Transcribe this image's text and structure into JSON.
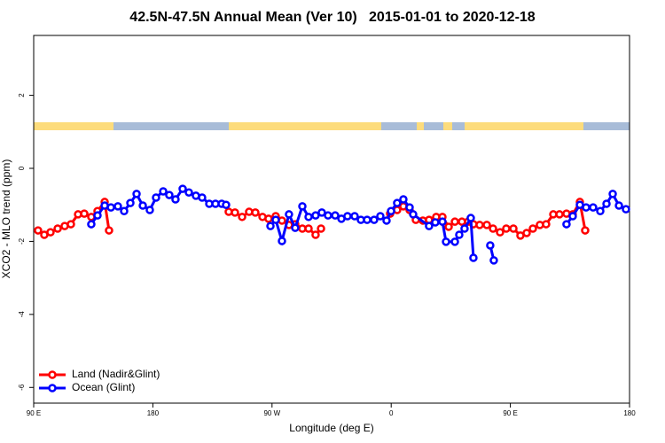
{
  "chart_data": {
    "type": "line",
    "title": "42.5N-47.5N Annual Mean (Ver 10)   2015-01-01 to 2020-12-18",
    "x_label": "Longitude (deg E)",
    "y_label": "XCO2 - MLO trend (ppm)",
    "xlim": [
      90,
      540
    ],
    "xticks": [
      {
        "value": 90,
        "label": "90 E"
      },
      180,
      {
        "value": 270,
        "label": "90 W"
      },
      {
        "value": 360,
        "label": "0"
      },
      {
        "value": 450,
        "label": "90 E"
      },
      {
        "value": 540,
        "label": "180"
      }
    ],
    "ylim": [
      -6.43,
      3.64
    ],
    "yticks": [
      -6,
      -4,
      -2,
      0,
      2
    ],
    "legend": "bottom-left",
    "series": [
      {
        "name": "Land (Nadir&Glint)",
        "color": "#ff0000",
        "x": [
          93.3,
          98.0,
          102.7,
          108.1,
          113.4,
          118.1,
          123.5,
          128.2,
          133.5,
          138.2,
          143.6,
          146.9,
          null,
          237.3,
          242.0,
          247.4,
          252.7,
          257.4,
          262.8,
          267.4,
          272.8,
          277.5,
          282.8,
          287.5,
          292.9,
          297.6,
          302.9,
          307.0,
          null,
          359.2,
          364.5,
          369.2,
          373.9,
          378.6,
          383.9,
          388.6,
          394.0,
          398.7,
          403.4,
          408.1,
          413.4,
          418.1,
          422.1,
          426.8,
          432.2,
          436.9,
          442.2,
          446.9,
          452.3,
          457.6,
          462.3,
          467.0,
          472.3,
          477.0,
          482.4,
          487.1,
          492.4,
          497.1,
          502.5,
          506.5
        ],
        "values": [
          -1.7,
          -1.82,
          -1.75,
          -1.65,
          -1.58,
          -1.53,
          -1.26,
          -1.24,
          -1.33,
          -1.17,
          -0.92,
          -1.7,
          null,
          -1.19,
          -1.21,
          -1.33,
          -1.19,
          -1.21,
          -1.33,
          -1.38,
          -1.31,
          -1.43,
          -1.55,
          -1.53,
          -1.65,
          -1.65,
          -1.82,
          -1.65,
          null,
          -1.24,
          -1.14,
          -1.04,
          -1.14,
          -1.41,
          -1.43,
          -1.41,
          -1.33,
          -1.33,
          -1.6,
          -1.46,
          -1.46,
          -1.46,
          -1.53,
          -1.55,
          -1.55,
          -1.65,
          -1.75,
          -1.65,
          -1.65,
          -1.84,
          -1.77,
          -1.65,
          -1.55,
          -1.53,
          -1.26,
          -1.26,
          -1.24,
          -1.26,
          -0.92,
          -1.7
        ]
      },
      {
        "name": "Ocean (Glint)",
        "color": "#0000ff",
        "x": [
          133.5,
          138.2,
          143.6,
          148.3,
          153.6,
          158.3,
          163.0,
          167.7,
          172.4,
          177.7,
          182.4,
          187.8,
          192.4,
          197.1,
          202.5,
          207.2,
          212.5,
          217.2,
          222.6,
          227.3,
          232.0,
          235.3,
          null,
          268.8,
          272.8,
          277.5,
          282.8,
          287.5,
          292.9,
          297.6,
          302.9,
          307.6,
          312.3,
          317.7,
          322.4,
          327.0,
          332.4,
          337.1,
          341.8,
          347.1,
          351.8,
          356.5,
          359.9,
          364.5,
          369.2,
          373.9,
          376.6,
          388.6,
          393.3,
          398.7,
          401.4,
          408.1,
          411.4,
          415.4,
          420.1,
          422.1,
          null,
          434.8,
          437.5,
          null,
          492.4,
          497.1,
          502.5,
          507.2,
          512.5,
          517.9,
          522.6,
          527.3,
          532.0,
          537.3
        ],
        "values": [
          -1.53,
          -1.29,
          -1.02,
          -1.07,
          -1.04,
          -1.17,
          -0.95,
          -0.7,
          -1.02,
          -1.14,
          -0.8,
          -0.63,
          -0.73,
          -0.85,
          -0.56,
          -0.66,
          -0.75,
          -0.8,
          -0.97,
          -0.97,
          -0.97,
          -1.0,
          null,
          -1.58,
          -1.41,
          -1.99,
          -1.26,
          -1.63,
          -1.04,
          -1.33,
          -1.29,
          -1.21,
          -1.29,
          -1.29,
          -1.38,
          -1.31,
          -1.31,
          -1.41,
          -1.41,
          -1.41,
          -1.31,
          -1.43,
          -1.17,
          -0.95,
          -0.85,
          -1.07,
          -1.26,
          -1.58,
          -1.48,
          -1.46,
          -2.01,
          -2.01,
          -1.82,
          -1.65,
          -1.36,
          -2.45,
          null,
          -2.11,
          -2.52,
          null,
          -1.53,
          -1.31,
          -1.0,
          -1.07,
          -1.07,
          -1.17,
          -0.97,
          -0.7,
          -1.02,
          -1.12
        ]
      }
    ]
  }
}
